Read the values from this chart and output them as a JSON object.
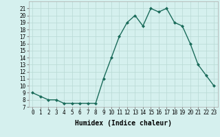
{
  "x": [
    0,
    1,
    2,
    3,
    4,
    5,
    6,
    7,
    8,
    9,
    10,
    11,
    12,
    13,
    14,
    15,
    16,
    17,
    18,
    19,
    20,
    21,
    22,
    23
  ],
  "y": [
    9,
    8.5,
    8,
    8,
    7.5,
    7.5,
    7.5,
    7.5,
    7.5,
    11,
    14,
    17,
    19,
    20,
    18.5,
    21,
    20.5,
    21,
    19,
    18.5,
    16,
    13,
    11.5,
    10
  ],
  "line_color": "#1a6b5a",
  "marker": "D",
  "marker_size": 2,
  "line_width": 1.0,
  "xlabel": "Humidex (Indice chaleur)",
  "xlim": [
    -0.5,
    23.5
  ],
  "ylim": [
    7,
    22
  ],
  "yticks": [
    7,
    8,
    9,
    10,
    11,
    12,
    13,
    14,
    15,
    16,
    17,
    18,
    19,
    20,
    21
  ],
  "xticks": [
    0,
    1,
    2,
    3,
    4,
    5,
    6,
    7,
    8,
    9,
    10,
    11,
    12,
    13,
    14,
    15,
    16,
    17,
    18,
    19,
    20,
    21,
    22,
    23
  ],
  "bg_color": "#d5f0ee",
  "grid_color": "#b8d8d4",
  "xlabel_fontsize": 7,
  "tick_fontsize": 5.5
}
